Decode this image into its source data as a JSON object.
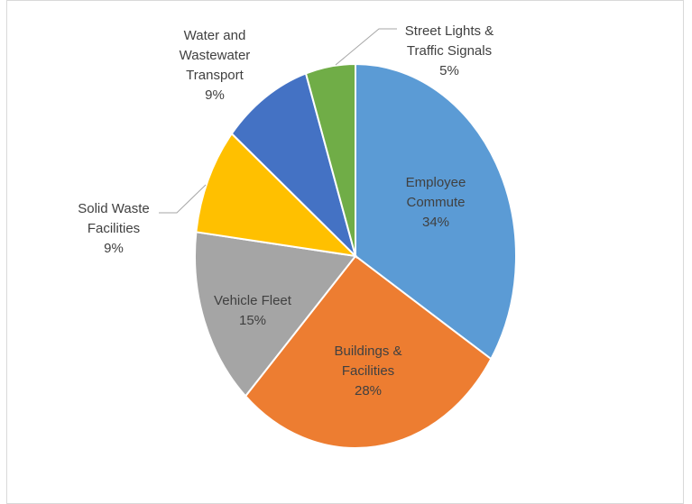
{
  "chart_data": {
    "type": "pie",
    "categories": [
      "Employee Commute",
      "Buildings & Facilities",
      "Vehicle Fleet",
      "Solid Waste Facilities",
      "Water and Wastewater Transport",
      "Street Lights & Traffic Signals"
    ],
    "values": [
      34,
      28,
      15,
      9,
      9,
      5
    ],
    "value_labels": [
      "34%",
      "28%",
      "15%",
      "9%",
      "9%",
      "5%"
    ],
    "colors": [
      "#5b9bd5",
      "#ed7d31",
      "#a5a5a5",
      "#ffc000",
      "#4472c4",
      "#70ad47"
    ]
  }
}
